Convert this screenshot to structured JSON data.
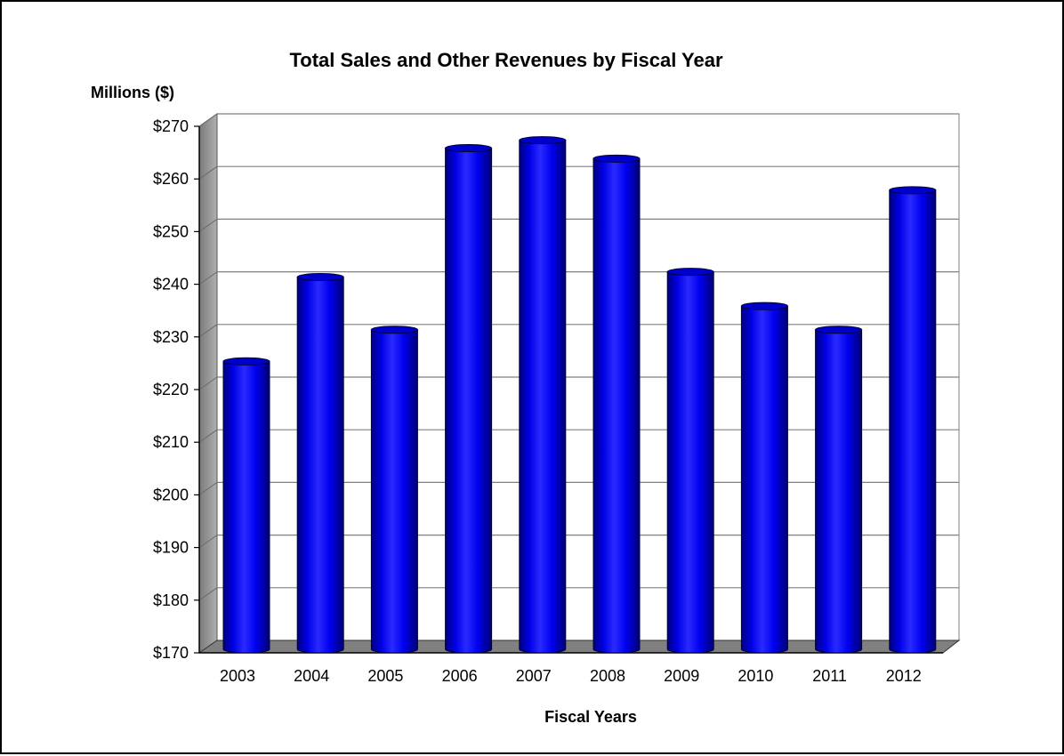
{
  "chart_data": {
    "type": "bar",
    "title": "Total Sales and Other Revenues by Fiscal Year",
    "ylabel": "Millions ($)",
    "xlabel": "Fiscal Years",
    "categories": [
      "2003",
      "2004",
      "2005",
      "2006",
      "2007",
      "2008",
      "2009",
      "2010",
      "2011",
      "2012"
    ],
    "values": [
      223.5,
      239.5,
      229.5,
      264,
      265.5,
      262,
      240.5,
      234,
      229.5,
      256
    ],
    "ylim": [
      170,
      270
    ],
    "y_tick_step": 10,
    "y_tick_prefix": "$",
    "grid": true,
    "legend": "none",
    "colors": {
      "bar": "#0000ff",
      "bar_dark": "#000099",
      "bar_top": "#1a1aff",
      "floor": "#808080",
      "wall_left": "#9a9a9a",
      "gridline": "#808080"
    }
  }
}
